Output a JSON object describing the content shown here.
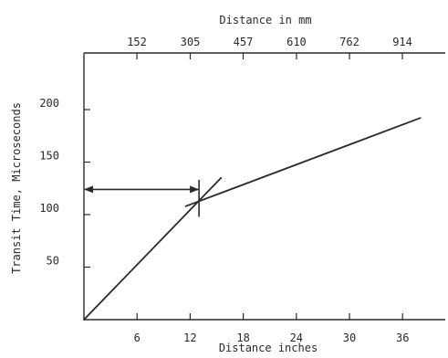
{
  "chart_data": {
    "type": "line",
    "title": "",
    "xlabel": "Distance inches",
    "ylabel": "Transit Time, Microseconds",
    "x2label": "Distance in mm",
    "xlim": [
      0,
      40
    ],
    "ylim": [
      0,
      240
    ],
    "x_ticks": [
      "6",
      "12",
      "18",
      "24",
      "30",
      "36"
    ],
    "x2_ticks": [
      "152",
      "305",
      "457",
      "610",
      "762",
      "914"
    ],
    "y_ticks": [
      "50",
      "100",
      "150",
      "200"
    ],
    "grid": false,
    "legend": "none",
    "series": [
      {
        "x": [
          0,
          15.5
        ],
        "y": [
          0,
          135
        ]
      },
      {
        "x": [
          11.5,
          38
        ],
        "y": [
          108,
          192
        ]
      }
    ],
    "annotations": [
      {
        "type": "double-arrow",
        "x_from": 0,
        "x_to": 13,
        "y": 124
      },
      {
        "type": "vertical-tick",
        "x": 13,
        "y_from": 98,
        "y_to": 133
      }
    ]
  }
}
